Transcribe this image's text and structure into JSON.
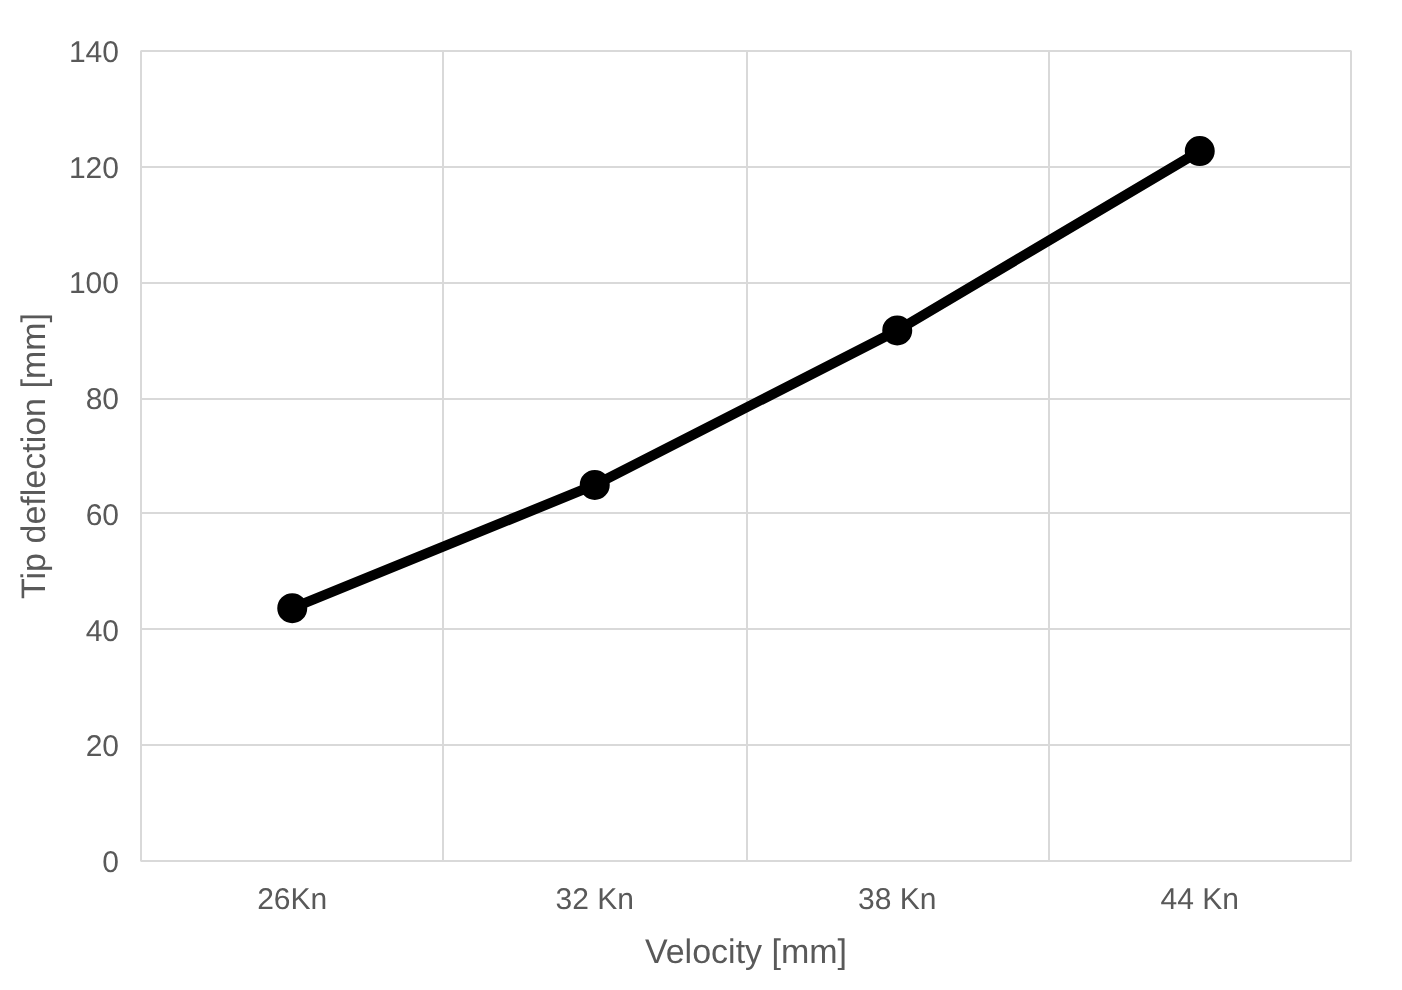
{
  "chart_data": {
    "type": "line",
    "xlabel": "Velocity [mm]",
    "ylabel": "Tip deflection [mm]",
    "categories": [
      "26Kn",
      "32 Kn",
      "38 Kn",
      "44 Kn"
    ],
    "series": [
      {
        "color": "#000000",
        "values": [
          43.7,
          65,
          91.7,
          122.7
        ]
      }
    ],
    "ylim": [
      0,
      140
    ],
    "yticks": [
      0,
      20,
      40,
      60,
      80,
      100,
      120,
      140
    ],
    "grid": true,
    "marker": "circle",
    "line_style": "solid"
  }
}
